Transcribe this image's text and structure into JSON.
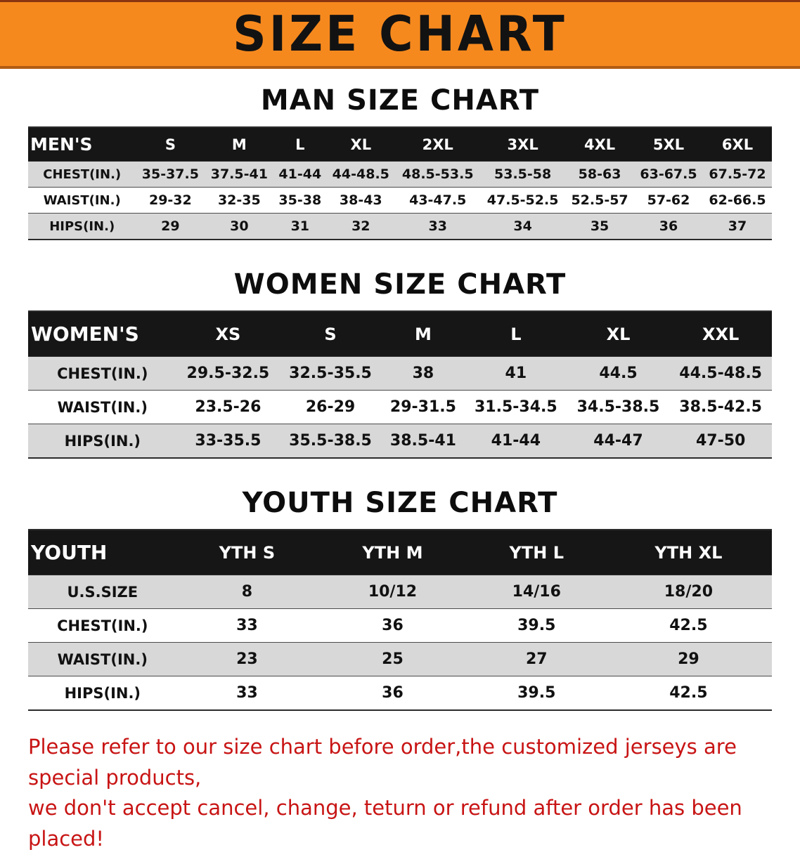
{
  "banner": {
    "title": "SIZE CHART",
    "bg_color": "#f6891e",
    "text_color": "#121212"
  },
  "colors": {
    "table_header_bg": "#161616",
    "row_shade": "#d8d8d8",
    "disclaimer_red": "#c81414"
  },
  "sections": [
    {
      "heading": "MAN SIZE CHART",
      "table": {
        "label": "MEN'S",
        "columns": [
          "S",
          "M",
          "L",
          "XL",
          "2XL",
          "3XL",
          "4XL",
          "5XL",
          "6XL"
        ],
        "rows": [
          {
            "label": "CHEST(IN.)",
            "values": [
              "35-37.5",
              "37.5-41",
              "41-44",
              "44-48.5",
              "48.5-53.5",
              "53.5-58",
              "58-63",
              "63-67.5",
              "67.5-72"
            ]
          },
          {
            "label": "WAIST(IN.)",
            "values": [
              "29-32",
              "32-35",
              "35-38",
              "38-43",
              "43-47.5",
              "47.5-52.5",
              "52.5-57",
              "57-62",
              "62-66.5"
            ]
          },
          {
            "label": "HIPS(IN.)",
            "values": [
              "29",
              "30",
              "31",
              "32",
              "33",
              "34",
              "35",
              "36",
              "37"
            ]
          }
        ]
      }
    },
    {
      "heading": "WOMEN SIZE CHART",
      "table": {
        "label": "WOMEN'S",
        "columns": [
          "XS",
          "S",
          "M",
          "L",
          "XL",
          "XXL"
        ],
        "rows": [
          {
            "label": "CHEST(IN.)",
            "values": [
              "29.5-32.5",
              "32.5-35.5",
              "38",
              "41",
              "44.5",
              "44.5-48.5"
            ]
          },
          {
            "label": "WAIST(IN.)",
            "values": [
              "23.5-26",
              "26-29",
              "29-31.5",
              "31.5-34.5",
              "34.5-38.5",
              "38.5-42.5"
            ]
          },
          {
            "label": "HIPS(IN.)",
            "values": [
              "33-35.5",
              "35.5-38.5",
              "38.5-41",
              "41-44",
              "44-47",
              "47-50"
            ]
          }
        ]
      }
    },
    {
      "heading": "YOUTH SIZE CHART",
      "table": {
        "label": "YOUTH",
        "columns": [
          "YTH S",
          "YTH M",
          "YTH L",
          "YTH XL"
        ],
        "rows": [
          {
            "label": "U.S.SIZE",
            "values": [
              "8",
              "10/12",
              "14/16",
              "18/20"
            ]
          },
          {
            "label": "CHEST(IN.)",
            "values": [
              "33",
              "36",
              "39.5",
              "42.5"
            ]
          },
          {
            "label": "WAIST(IN.)",
            "values": [
              "23",
              "25",
              "27",
              "29"
            ]
          },
          {
            "label": "HIPS(IN.)",
            "values": [
              "33",
              "36",
              "39.5",
              "42.5"
            ]
          }
        ]
      }
    }
  ],
  "disclaimer": {
    "line1": "Please refer to our size chart before order,the customized jerseys are special products,",
    "line2": "we don't accept cancel, change, teturn or refund after order has been placed!"
  }
}
